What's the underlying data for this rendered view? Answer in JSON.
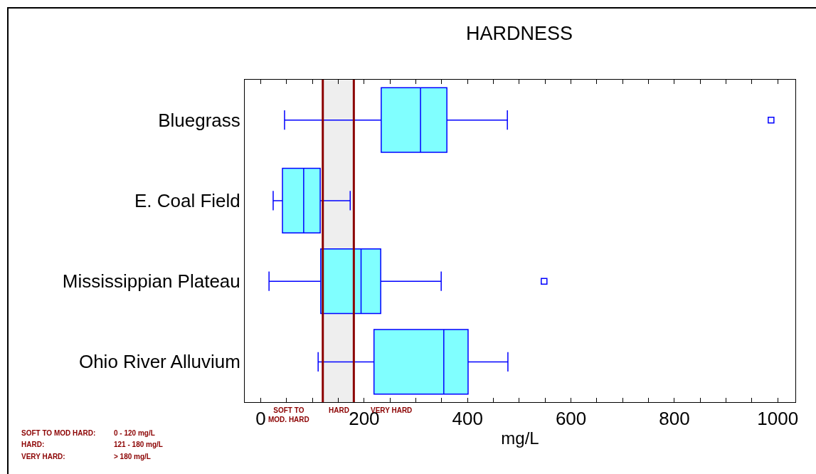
{
  "chart_data": {
    "type": "box",
    "title": "HARDNESS",
    "xlabel": "mg/L",
    "orientation": "horizontal",
    "categories": [
      "Bluegrass",
      "E. Coal Field",
      "Mississippian Plateau",
      "Ohio River Alluvium"
    ],
    "series": [
      {
        "color": "#80ffff",
        "boxes": [
          {
            "low": 46,
            "q1": 233,
            "median": 309,
            "q3": 360,
            "high": 477,
            "outliers": [
              987
            ]
          },
          {
            "low": 24,
            "q1": 42,
            "median": 83,
            "q3": 115,
            "high": 173
          },
          {
            "low": 16,
            "q1": 116,
            "median": 194,
            "q3": 232,
            "high": 349,
            "outliers": [
              548
            ]
          },
          {
            "low": 111,
            "q1": 219,
            "median": 354,
            "q3": 401,
            "high": 478
          }
        ]
      }
    ],
    "xlim": [
      -31,
      1034
    ],
    "xticks": [
      0,
      {
        "value": 50,
        "label": null
      },
      {
        "value": 100,
        "label": null
      },
      {
        "value": 150,
        "label": null
      },
      200,
      {
        "value": 250,
        "label": null
      },
      {
        "value": 300,
        "label": null
      },
      {
        "value": 350,
        "label": null
      },
      400,
      {
        "value": 450,
        "label": null
      },
      {
        "value": 500,
        "label": null
      },
      {
        "value": 550,
        "label": null
      },
      600,
      {
        "value": 650,
        "label": null
      },
      {
        "value": 700,
        "label": null
      },
      {
        "value": 750,
        "label": null
      },
      800,
      {
        "value": 850,
        "label": null
      },
      {
        "value": 900,
        "label": null
      },
      {
        "value": 950,
        "label": null
      },
      1000
    ],
    "ref_lines": [
      {
        "axis": "x",
        "value": 120,
        "color": "#8b0000"
      },
      {
        "axis": "x",
        "value": 180,
        "color": "#8b0000"
      }
    ],
    "bands": [
      {
        "axis": "x",
        "from": 120,
        "to": 180,
        "color": "#eeeeee"
      }
    ],
    "annotations": [
      "SOFT TO\nMOD. HARD",
      "HARD",
      "VERY HARD",
      "SOFT TO MOD HARD:",
      "0 - 120 mg/L",
      "HARD:",
      "121 - 180 mg/L",
      "VERY HARD:",
      "> 180 mg/L"
    ],
    "marker": "square",
    "grid": false
  }
}
